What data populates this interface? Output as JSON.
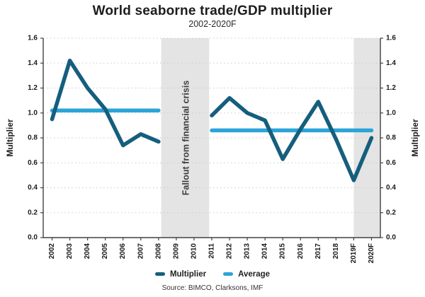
{
  "chart_data": {
    "type": "line",
    "title": "World seaborne trade/GDP multiplier",
    "subtitle": "2002-2020F",
    "source": "Source: BIMCO, Clarksons, IMF",
    "ylabel_left": "Multiplier",
    "ylabel_right": "Multiplier",
    "ylim": [
      0.0,
      1.6
    ],
    "ytick_step": 0.2,
    "grid": "dotted-horizontal",
    "legend_position": "bottom",
    "categories": [
      "2002",
      "2003",
      "2004",
      "2005",
      "2006",
      "2007",
      "2008",
      "2009",
      "2010",
      "2011",
      "2012",
      "2013",
      "2014",
      "2015",
      "2016",
      "2017",
      "2018",
      "2019F",
      "2020F"
    ],
    "series": [
      {
        "name": "Multiplier",
        "color": "#155e7d",
        "values": [
          0.95,
          1.42,
          1.2,
          1.03,
          0.74,
          0.83,
          0.77,
          null,
          null,
          0.98,
          1.12,
          1.0,
          0.94,
          0.63,
          0.87,
          1.09,
          0.79,
          0.46,
          0.8
        ]
      },
      {
        "name": "Average",
        "color": "#2ba4d8",
        "segments": [
          {
            "from": "2002",
            "to": "2008",
            "value": 1.02
          },
          {
            "from": "2011",
            "to": "2020F",
            "value": 0.86
          }
        ]
      }
    ],
    "annotations": {
      "bands": [
        {
          "label": "Fallout from financial crisis",
          "from_index": 6.15,
          "to_index": 8.85,
          "color": "#e4e4e4"
        },
        {
          "label": "",
          "from_index": 17.0,
          "to_index": 18.5,
          "color": "#e4e4e4"
        }
      ]
    }
  }
}
